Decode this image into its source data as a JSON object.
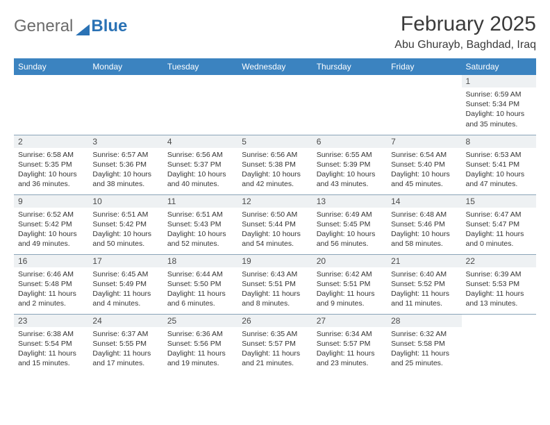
{
  "logo": {
    "part1": "General",
    "part2": "Blue"
  },
  "title": "February 2025",
  "location": "Abu Ghurayb, Baghdad, Iraq",
  "header_bg": "#3b83c0",
  "header_fg": "#ffffff",
  "daynum_bg": "#eef1f3",
  "rule_color": "#8aa4b8",
  "days_of_week": [
    "Sunday",
    "Monday",
    "Tuesday",
    "Wednesday",
    "Thursday",
    "Friday",
    "Saturday"
  ],
  "weeks": [
    [
      null,
      null,
      null,
      null,
      null,
      null,
      {
        "n": "1",
        "sunrise": "Sunrise: 6:59 AM",
        "sunset": "Sunset: 5:34 PM",
        "daylight": "Daylight: 10 hours and 35 minutes."
      }
    ],
    [
      {
        "n": "2",
        "sunrise": "Sunrise: 6:58 AM",
        "sunset": "Sunset: 5:35 PM",
        "daylight": "Daylight: 10 hours and 36 minutes."
      },
      {
        "n": "3",
        "sunrise": "Sunrise: 6:57 AM",
        "sunset": "Sunset: 5:36 PM",
        "daylight": "Daylight: 10 hours and 38 minutes."
      },
      {
        "n": "4",
        "sunrise": "Sunrise: 6:56 AM",
        "sunset": "Sunset: 5:37 PM",
        "daylight": "Daylight: 10 hours and 40 minutes."
      },
      {
        "n": "5",
        "sunrise": "Sunrise: 6:56 AM",
        "sunset": "Sunset: 5:38 PM",
        "daylight": "Daylight: 10 hours and 42 minutes."
      },
      {
        "n": "6",
        "sunrise": "Sunrise: 6:55 AM",
        "sunset": "Sunset: 5:39 PM",
        "daylight": "Daylight: 10 hours and 43 minutes."
      },
      {
        "n": "7",
        "sunrise": "Sunrise: 6:54 AM",
        "sunset": "Sunset: 5:40 PM",
        "daylight": "Daylight: 10 hours and 45 minutes."
      },
      {
        "n": "8",
        "sunrise": "Sunrise: 6:53 AM",
        "sunset": "Sunset: 5:41 PM",
        "daylight": "Daylight: 10 hours and 47 minutes."
      }
    ],
    [
      {
        "n": "9",
        "sunrise": "Sunrise: 6:52 AM",
        "sunset": "Sunset: 5:42 PM",
        "daylight": "Daylight: 10 hours and 49 minutes."
      },
      {
        "n": "10",
        "sunrise": "Sunrise: 6:51 AM",
        "sunset": "Sunset: 5:42 PM",
        "daylight": "Daylight: 10 hours and 50 minutes."
      },
      {
        "n": "11",
        "sunrise": "Sunrise: 6:51 AM",
        "sunset": "Sunset: 5:43 PM",
        "daylight": "Daylight: 10 hours and 52 minutes."
      },
      {
        "n": "12",
        "sunrise": "Sunrise: 6:50 AM",
        "sunset": "Sunset: 5:44 PM",
        "daylight": "Daylight: 10 hours and 54 minutes."
      },
      {
        "n": "13",
        "sunrise": "Sunrise: 6:49 AM",
        "sunset": "Sunset: 5:45 PM",
        "daylight": "Daylight: 10 hours and 56 minutes."
      },
      {
        "n": "14",
        "sunrise": "Sunrise: 6:48 AM",
        "sunset": "Sunset: 5:46 PM",
        "daylight": "Daylight: 10 hours and 58 minutes."
      },
      {
        "n": "15",
        "sunrise": "Sunrise: 6:47 AM",
        "sunset": "Sunset: 5:47 PM",
        "daylight": "Daylight: 11 hours and 0 minutes."
      }
    ],
    [
      {
        "n": "16",
        "sunrise": "Sunrise: 6:46 AM",
        "sunset": "Sunset: 5:48 PM",
        "daylight": "Daylight: 11 hours and 2 minutes."
      },
      {
        "n": "17",
        "sunrise": "Sunrise: 6:45 AM",
        "sunset": "Sunset: 5:49 PM",
        "daylight": "Daylight: 11 hours and 4 minutes."
      },
      {
        "n": "18",
        "sunrise": "Sunrise: 6:44 AM",
        "sunset": "Sunset: 5:50 PM",
        "daylight": "Daylight: 11 hours and 6 minutes."
      },
      {
        "n": "19",
        "sunrise": "Sunrise: 6:43 AM",
        "sunset": "Sunset: 5:51 PM",
        "daylight": "Daylight: 11 hours and 8 minutes."
      },
      {
        "n": "20",
        "sunrise": "Sunrise: 6:42 AM",
        "sunset": "Sunset: 5:51 PM",
        "daylight": "Daylight: 11 hours and 9 minutes."
      },
      {
        "n": "21",
        "sunrise": "Sunrise: 6:40 AM",
        "sunset": "Sunset: 5:52 PM",
        "daylight": "Daylight: 11 hours and 11 minutes."
      },
      {
        "n": "22",
        "sunrise": "Sunrise: 6:39 AM",
        "sunset": "Sunset: 5:53 PM",
        "daylight": "Daylight: 11 hours and 13 minutes."
      }
    ],
    [
      {
        "n": "23",
        "sunrise": "Sunrise: 6:38 AM",
        "sunset": "Sunset: 5:54 PM",
        "daylight": "Daylight: 11 hours and 15 minutes."
      },
      {
        "n": "24",
        "sunrise": "Sunrise: 6:37 AM",
        "sunset": "Sunset: 5:55 PM",
        "daylight": "Daylight: 11 hours and 17 minutes."
      },
      {
        "n": "25",
        "sunrise": "Sunrise: 6:36 AM",
        "sunset": "Sunset: 5:56 PM",
        "daylight": "Daylight: 11 hours and 19 minutes."
      },
      {
        "n": "26",
        "sunrise": "Sunrise: 6:35 AM",
        "sunset": "Sunset: 5:57 PM",
        "daylight": "Daylight: 11 hours and 21 minutes."
      },
      {
        "n": "27",
        "sunrise": "Sunrise: 6:34 AM",
        "sunset": "Sunset: 5:57 PM",
        "daylight": "Daylight: 11 hours and 23 minutes."
      },
      {
        "n": "28",
        "sunrise": "Sunrise: 6:32 AM",
        "sunset": "Sunset: 5:58 PM",
        "daylight": "Daylight: 11 hours and 25 minutes."
      },
      null
    ]
  ]
}
